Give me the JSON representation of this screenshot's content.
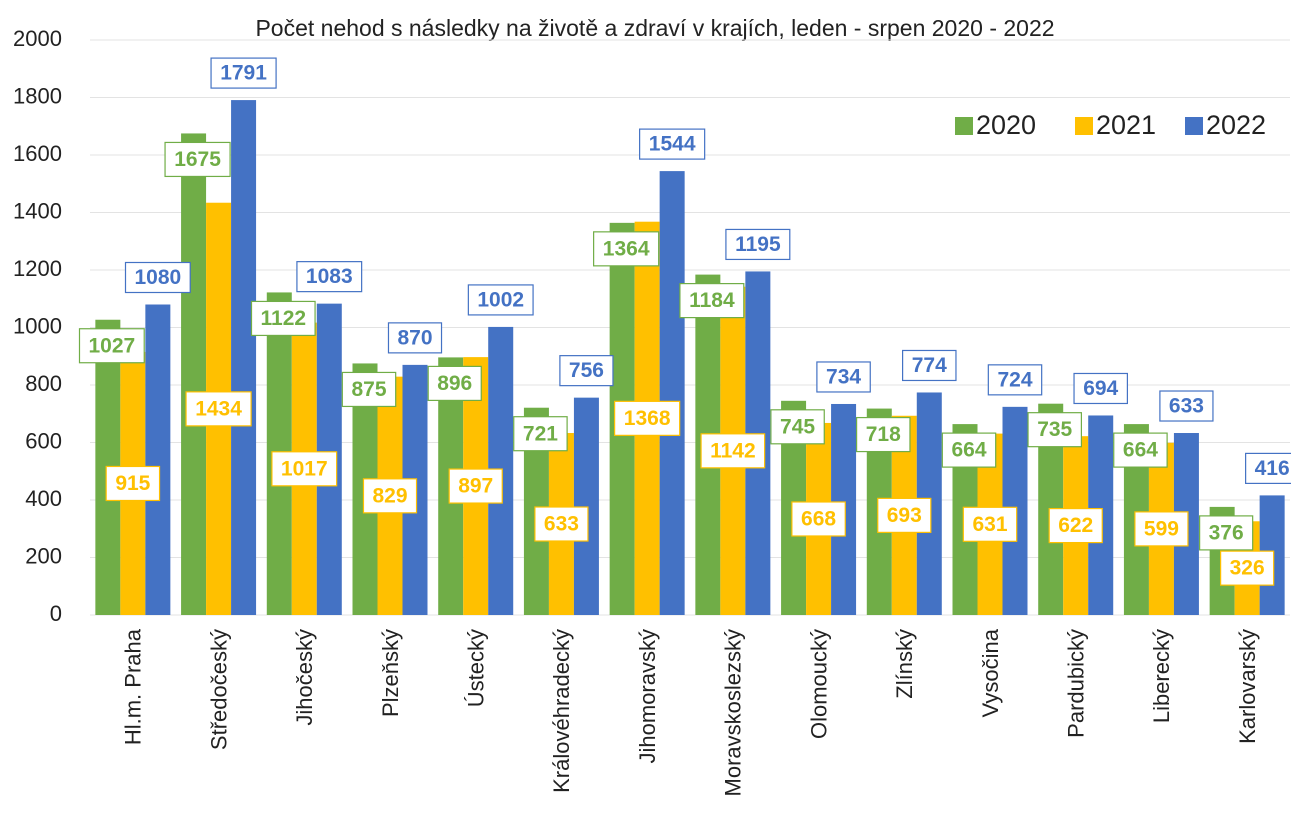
{
  "chart_data": {
    "type": "bar",
    "title": "Počet nehod s následky  na životě a zdraví v krajích, leden - srpen 2020 - 2022",
    "categories": [
      "Hl.m. Praha",
      "Středočeský",
      "Jihočeský",
      "Plzeňský",
      "Ústecký",
      "Královéhradecký",
      "Jihomoravský",
      "Moravskoslezský",
      "Olomoucký",
      "Zlínský",
      "Vysočina",
      "Pardubický",
      "Liberecký",
      "Karlovarský"
    ],
    "series": [
      {
        "name": "2020",
        "color": "#70ad47",
        "values": [
          1027,
          1675,
          1122,
          875,
          896,
          721,
          1364,
          1184,
          745,
          718,
          664,
          735,
          664,
          376
        ]
      },
      {
        "name": "2021",
        "color": "#ffc000",
        "values": [
          915,
          1434,
          1017,
          829,
          897,
          633,
          1368,
          1142,
          668,
          693,
          631,
          622,
          599,
          326
        ]
      },
      {
        "name": "2022",
        "color": "#4472c4",
        "values": [
          1080,
          1791,
          1083,
          870,
          1002,
          756,
          1544,
          1195,
          734,
          774,
          724,
          694,
          633,
          416
        ]
      }
    ],
    "ylim": [
      0,
      2000
    ],
    "yticks": [
      0,
      200,
      400,
      600,
      800,
      1000,
      1200,
      1400,
      1600,
      1800,
      2000
    ],
    "grid": true,
    "legend": "top-right"
  }
}
